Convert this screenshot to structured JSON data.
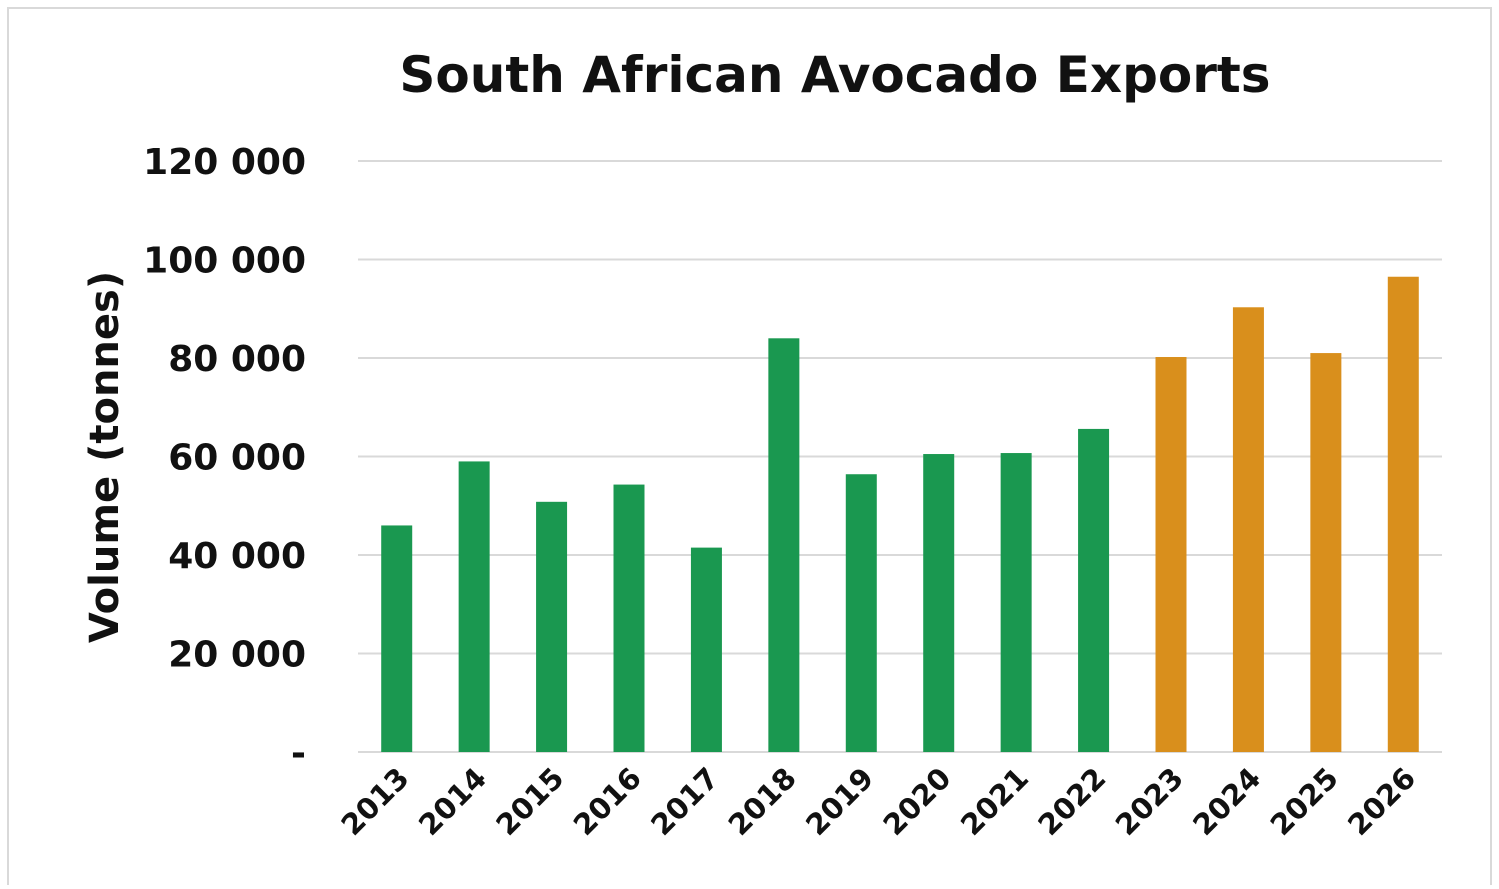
{
  "chart_data": {
    "type": "bar",
    "title": "South African Avocado Exports",
    "xlabel": "",
    "ylabel": "Volume (tonnes)",
    "ylim": [
      0,
      120000
    ],
    "yticks": [
      {
        "value": 0,
        "label": "-"
      },
      {
        "value": 20000,
        "label": "20 000"
      },
      {
        "value": 40000,
        "label": "40 000"
      },
      {
        "value": 60000,
        "label": "60 000"
      },
      {
        "value": 80000,
        "label": "80 000"
      },
      {
        "value": 100000,
        "label": "100 000"
      },
      {
        "value": 120000,
        "label": "120 000"
      }
    ],
    "categories": [
      "2013",
      "2014",
      "2015",
      "2016",
      "2017",
      "2018",
      "2019",
      "2020",
      "2021",
      "2022",
      "2023",
      "2024",
      "2025",
      "2026"
    ],
    "values": [
      46000,
      59000,
      50800,
      54300,
      41500,
      84000,
      56400,
      60500,
      60700,
      65600,
      80200,
      90300,
      81000,
      96500
    ],
    "bar_colors": [
      "#1a9850",
      "#1a9850",
      "#1a9850",
      "#1a9850",
      "#1a9850",
      "#1a9850",
      "#1a9850",
      "#1a9850",
      "#1a9850",
      "#1a9850",
      "#d98f1c",
      "#d98f1c",
      "#d98f1c",
      "#d98f1c"
    ],
    "grid": true,
    "legend": "none"
  }
}
